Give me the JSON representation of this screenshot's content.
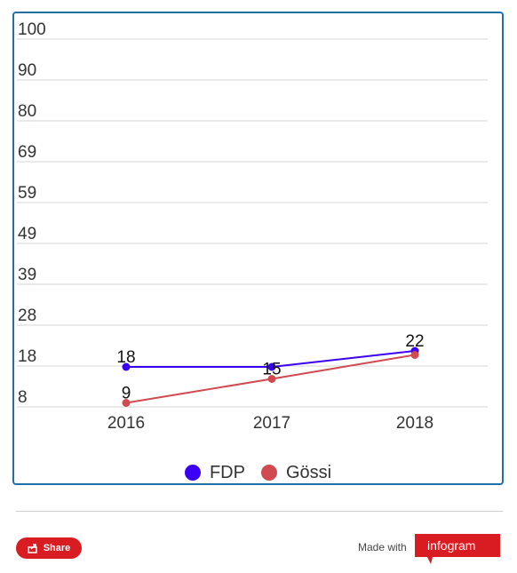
{
  "chart_data": {
    "type": "line",
    "categories": [
      "2016",
      "2017",
      "2018"
    ],
    "series": [
      {
        "name": "FDP",
        "values": [
          18,
          18,
          22
        ],
        "data_labels": [
          "18",
          "",
          "22"
        ],
        "color": "#3a00f5"
      },
      {
        "name": "Gössi",
        "values": [
          9,
          15,
          21
        ],
        "data_labels": [
          "9",
          "15",
          ""
        ],
        "color": "#d14a4f"
      }
    ],
    "y_ticks": [
      "100",
      "90",
      "80",
      "69",
      "59",
      "49",
      "39",
      "28",
      "18",
      "8"
    ],
    "ylim": [
      8,
      100
    ],
    "grid": true,
    "legend_position": "bottom-center"
  },
  "legend": {
    "items": [
      {
        "label": "FDP",
        "color": "#3a00f5"
      },
      {
        "label": "Gössi",
        "color": "#d14a4f"
      }
    ]
  },
  "footer": {
    "share_label": "Share",
    "share_icon": "share-icon",
    "made_with_label": "Made with",
    "brand_label": "infogram",
    "brand_color": "#d91c21"
  },
  "colors": {
    "frame_border": "#1f6fa8",
    "grid": "#d5d5d5",
    "tick_text": "#333333",
    "label_text": "#111111"
  }
}
